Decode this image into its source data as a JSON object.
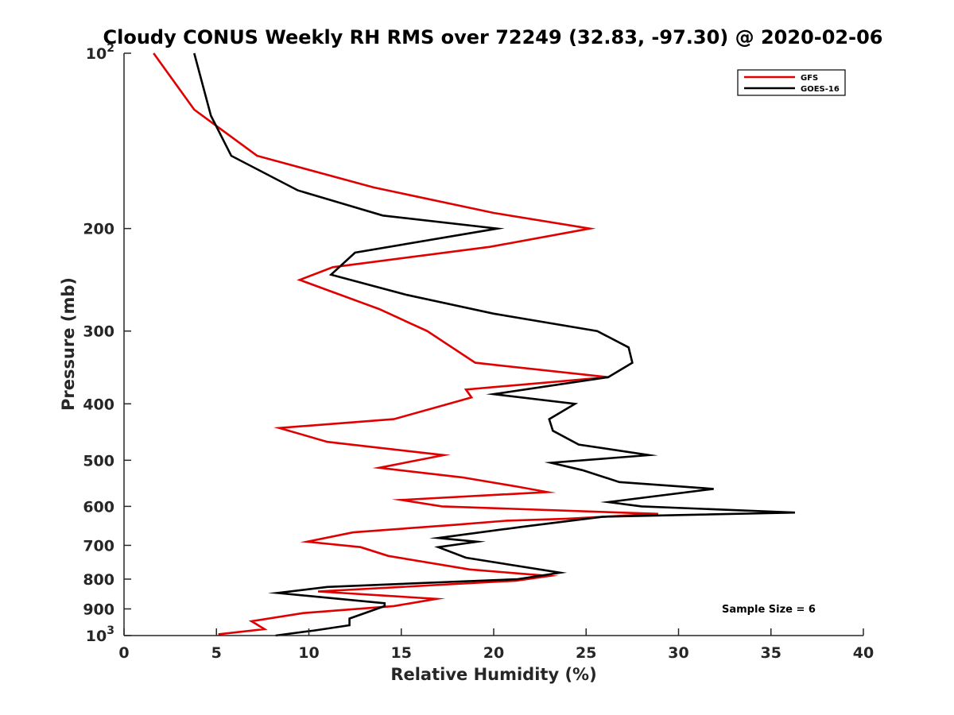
{
  "chart_data": {
    "type": "line",
    "title": "Cloudy CONUS Weekly RH RMS over 72249 (32.83, -97.30) @ 2020-02-06",
    "xlabel": "Relative Humidity (%)",
    "ylabel": "Pressure (mb)",
    "xlim": [
      0,
      40
    ],
    "ylim": [
      100,
      1000
    ],
    "y_scale": "log",
    "y_reversed": true,
    "x_ticks": [
      0,
      5,
      10,
      15,
      20,
      25,
      30,
      35,
      40
    ],
    "y_ticks": [
      {
        "value": 100,
        "base": "10",
        "exp": "2"
      },
      {
        "value": 200,
        "label": "200"
      },
      {
        "value": 300,
        "label": "300"
      },
      {
        "value": 400,
        "label": "400"
      },
      {
        "value": 500,
        "label": "500"
      },
      {
        "value": 600,
        "label": "600"
      },
      {
        "value": 700,
        "label": "700"
      },
      {
        "value": 800,
        "label": "800"
      },
      {
        "value": 900,
        "label": "900"
      },
      {
        "value": 1000,
        "base": "10",
        "exp": "3"
      }
    ],
    "grid": false,
    "legend_position": "top-right",
    "series": [
      {
        "name": "GFS",
        "color": "#e00000",
        "points": [
          [
            1.6,
            100
          ],
          [
            3.8,
            125
          ],
          [
            7.2,
            150
          ],
          [
            13.5,
            170
          ],
          [
            20.0,
            188
          ],
          [
            25.2,
            200
          ],
          [
            19.8,
            215
          ],
          [
            11.3,
            233
          ],
          [
            9.5,
            245
          ],
          [
            13.8,
            275
          ],
          [
            16.4,
            300
          ],
          [
            19.0,
            340
          ],
          [
            26.2,
            360
          ],
          [
            18.5,
            378
          ],
          [
            18.8,
            390
          ],
          [
            14.6,
            425
          ],
          [
            8.4,
            440
          ],
          [
            11.0,
            465
          ],
          [
            17.3,
            490
          ],
          [
            13.8,
            515
          ],
          [
            18.3,
            535
          ],
          [
            21.3,
            555
          ],
          [
            22.9,
            567
          ],
          [
            15.0,
            585
          ],
          [
            17.2,
            600
          ],
          [
            28.9,
            618
          ],
          [
            24.0,
            630
          ],
          [
            20.7,
            635
          ],
          [
            18.0,
            645
          ],
          [
            12.4,
            665
          ],
          [
            9.9,
            690
          ],
          [
            12.8,
            705
          ],
          [
            14.3,
            730
          ],
          [
            18.7,
            770
          ],
          [
            23.0,
            790
          ],
          [
            21.2,
            805
          ],
          [
            15.0,
            825
          ],
          [
            10.5,
            840
          ],
          [
            16.9,
            865
          ],
          [
            14.6,
            890
          ],
          [
            9.7,
            915
          ],
          [
            6.9,
            945
          ],
          [
            7.6,
            975
          ],
          [
            5.1,
            995
          ]
        ]
      },
      {
        "name": "GOES-16",
        "color": "#000000",
        "points": [
          [
            3.8,
            100
          ],
          [
            4.7,
            128
          ],
          [
            5.8,
            150
          ],
          [
            9.4,
            172
          ],
          [
            14.0,
            190
          ],
          [
            20.2,
            200
          ],
          [
            12.5,
            220
          ],
          [
            11.2,
            240
          ],
          [
            15.3,
            260
          ],
          [
            20.0,
            280
          ],
          [
            25.6,
            300
          ],
          [
            27.3,
            320
          ],
          [
            27.5,
            340
          ],
          [
            26.2,
            360
          ],
          [
            20.0,
            385
          ],
          [
            24.4,
            400
          ],
          [
            23.0,
            425
          ],
          [
            23.2,
            445
          ],
          [
            24.6,
            470
          ],
          [
            28.4,
            490
          ],
          [
            23.1,
            505
          ],
          [
            24.8,
            520
          ],
          [
            26.8,
            545
          ],
          [
            31.9,
            560
          ],
          [
            26.2,
            590
          ],
          [
            28.0,
            600
          ],
          [
            36.3,
            615
          ],
          [
            25.9,
            625
          ],
          [
            21.6,
            650
          ],
          [
            17.0,
            680
          ],
          [
            19.1,
            690
          ],
          [
            17.0,
            705
          ],
          [
            18.5,
            735
          ],
          [
            23.6,
            780
          ],
          [
            21.3,
            800
          ],
          [
            11.0,
            825
          ],
          [
            8.3,
            845
          ],
          [
            14.1,
            880
          ],
          [
            14.1,
            890
          ],
          [
            12.2,
            935
          ],
          [
            12.2,
            960
          ],
          [
            10.3,
            980
          ],
          [
            8.2,
            1000
          ]
        ]
      }
    ],
    "annotations": [
      {
        "text": "Sample Size = 6"
      }
    ]
  }
}
